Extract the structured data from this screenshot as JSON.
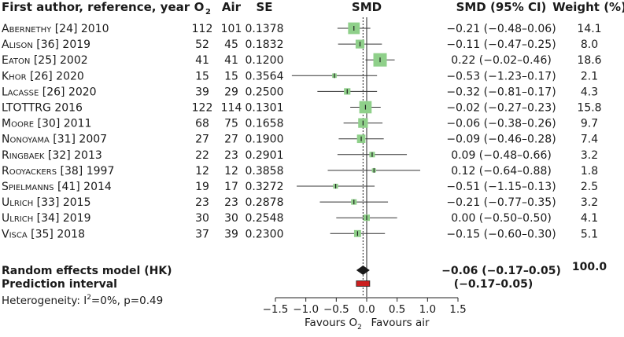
{
  "chart_data": {
    "type": "forest",
    "columns": {
      "study": "First author, reference, year",
      "o2": "O",
      "o2_sub": "2",
      "air": "Air",
      "se": "SE",
      "smd": "SMD",
      "smd_ci": "SMD (95% CI)",
      "weight": "Weight (%)"
    },
    "studies": [
      {
        "author": "Abernethy",
        "rest": " [24] 2010",
        "o2": "112",
        "air": "101",
        "se": "0.1378",
        "smd": -0.21,
        "lo": -0.48,
        "hi": 0.06,
        "ci_text": "−0.21 (−0.48–0.06)",
        "weight_text": "14.1",
        "weight": 14.1
      },
      {
        "author": "Alison",
        "rest": " [36] 2019",
        "o2": "52",
        "air": "45",
        "se": "0.1832",
        "smd": -0.11,
        "lo": -0.47,
        "hi": 0.25,
        "ci_text": "−0.11 (−0.47–0.25)",
        "weight_text": "8.0",
        "weight": 8.0
      },
      {
        "author": "Eaton",
        "rest": " [25] 2002",
        "o2": "41",
        "air": "41",
        "se": "0.1200",
        "smd": 0.22,
        "lo": -0.02,
        "hi": 0.46,
        "ci_text": "0.22 (−0.02–0.46)",
        "weight_text": "18.6",
        "weight": 18.6
      },
      {
        "author": "Khor",
        "rest": " [26] 2020",
        "o2": "15",
        "air": "15",
        "se": "0.3564",
        "smd": -0.53,
        "lo": -1.23,
        "hi": 0.17,
        "ci_text": "−0.53 (−1.23–0.17)",
        "weight_text": "2.1",
        "weight": 2.1
      },
      {
        "author": "Lacasse",
        "rest": " [26] 2020",
        "o2": "39",
        "air": "29",
        "se": "0.2500",
        "smd": -0.32,
        "lo": -0.81,
        "hi": 0.17,
        "ci_text": "−0.32 (−0.81–0.17)",
        "weight_text": "4.3",
        "weight": 4.3
      },
      {
        "author": "",
        "rest": "LTOTTRG 2016",
        "o2": "122",
        "air": "114",
        "se": "0.1301",
        "smd": -0.02,
        "lo": -0.27,
        "hi": 0.23,
        "ci_text": "−0.02 (−0.27–0.23)",
        "weight_text": "15.8",
        "weight": 15.8
      },
      {
        "author": "Moore",
        "rest": " [30] 2011",
        "o2": "68",
        "air": "75",
        "se": "0.1658",
        "smd": -0.06,
        "lo": -0.38,
        "hi": 0.26,
        "ci_text": "−0.06 (−0.38–0.26)",
        "weight_text": "9.7",
        "weight": 9.7
      },
      {
        "author": "Nonoyama",
        "rest": " [31] 2007",
        "o2": "27",
        "air": "27",
        "se": "0.1900",
        "smd": -0.09,
        "lo": -0.46,
        "hi": 0.28,
        "ci_text": "−0.09 (−0.46–0.28)",
        "weight_text": "7.4",
        "weight": 7.4
      },
      {
        "author": "Ringbaek",
        "rest": " [32] 2013",
        "o2": "22",
        "air": "23",
        "se": "0.2901",
        "smd": 0.09,
        "lo": -0.48,
        "hi": 0.66,
        "ci_text": "0.09 (−0.48–0.66)",
        "weight_text": "3.2",
        "weight": 3.2
      },
      {
        "author": "Rooyackers",
        "rest": " [38] 1997",
        "o2": "12",
        "air": "12",
        "se": "0.3858",
        "smd": 0.12,
        "lo": -0.64,
        "hi": 0.88,
        "ci_text": "0.12 (−0.64–0.88)",
        "weight_text": "1.8",
        "weight": 1.8
      },
      {
        "author": "Spielmanns",
        "rest": " [41] 2014",
        "o2": "19",
        "air": "17",
        "se": "0.3272",
        "smd": -0.51,
        "lo": -1.15,
        "hi": 0.13,
        "ci_text": "−0.51 (−1.15–0.13)",
        "weight_text": "2.5",
        "weight": 2.5
      },
      {
        "author": "Ulrich",
        "rest": " [33] 2015",
        "o2": "23",
        "air": "23",
        "se": "0.2878",
        "smd": -0.21,
        "lo": -0.77,
        "hi": 0.35,
        "ci_text": "−0.21 (−0.77–0.35)",
        "weight_text": "3.2",
        "weight": 3.2
      },
      {
        "author": "Ulrich",
        "rest": " [34] 2019",
        "o2": "30",
        "air": "30",
        "se": "0.2548",
        "smd": 0.0,
        "lo": -0.5,
        "hi": 0.5,
        "ci_text": "0.00 (−0.50–0.50)",
        "weight_text": "4.1",
        "weight": 4.1
      },
      {
        "author": "Visca",
        "rest": " [35] 2018",
        "o2": "37",
        "air": "39",
        "se": "0.2300",
        "smd": -0.15,
        "lo": -0.6,
        "hi": 0.3,
        "ci_text": "−0.15 (−0.60–0.30)",
        "weight_text": "5.1",
        "weight": 5.1
      }
    ],
    "summary": {
      "label": "Random effects model (HK)",
      "smd": -0.06,
      "lo": -0.17,
      "hi": 0.05,
      "ci_text": "−0.06 (−0.17–0.05)",
      "weight_text": "100.0"
    },
    "prediction": {
      "label": "Prediction interval",
      "lo": -0.17,
      "hi": 0.05,
      "ci_text": "(−0.17–0.05)"
    },
    "heterogeneity": {
      "prefix": "Heterogeneity: I",
      "sup": "2",
      "suffix": "=0%, p=0.49"
    },
    "axis": {
      "xlim": [
        -1.5,
        1.5
      ],
      "ticks": [
        -1.5,
        -1.0,
        -0.5,
        0.0,
        0.5,
        1.0,
        1.5
      ],
      "tick_labels": [
        "−1.5",
        "−1.0",
        "−0.5",
        "0.0",
        "0.5",
        "1.0",
        "1.5"
      ],
      "null_line": 0.0,
      "summary_line": -0.06
    },
    "favours_left": "Favours O",
    "favours_left_sub": "2",
    "favours_right": "Favours air",
    "colors": {
      "square": "#8fd08a",
      "diamond": "#1a1a1a",
      "prediction": "#cc2020",
      "text": "#1a1a1a"
    }
  }
}
